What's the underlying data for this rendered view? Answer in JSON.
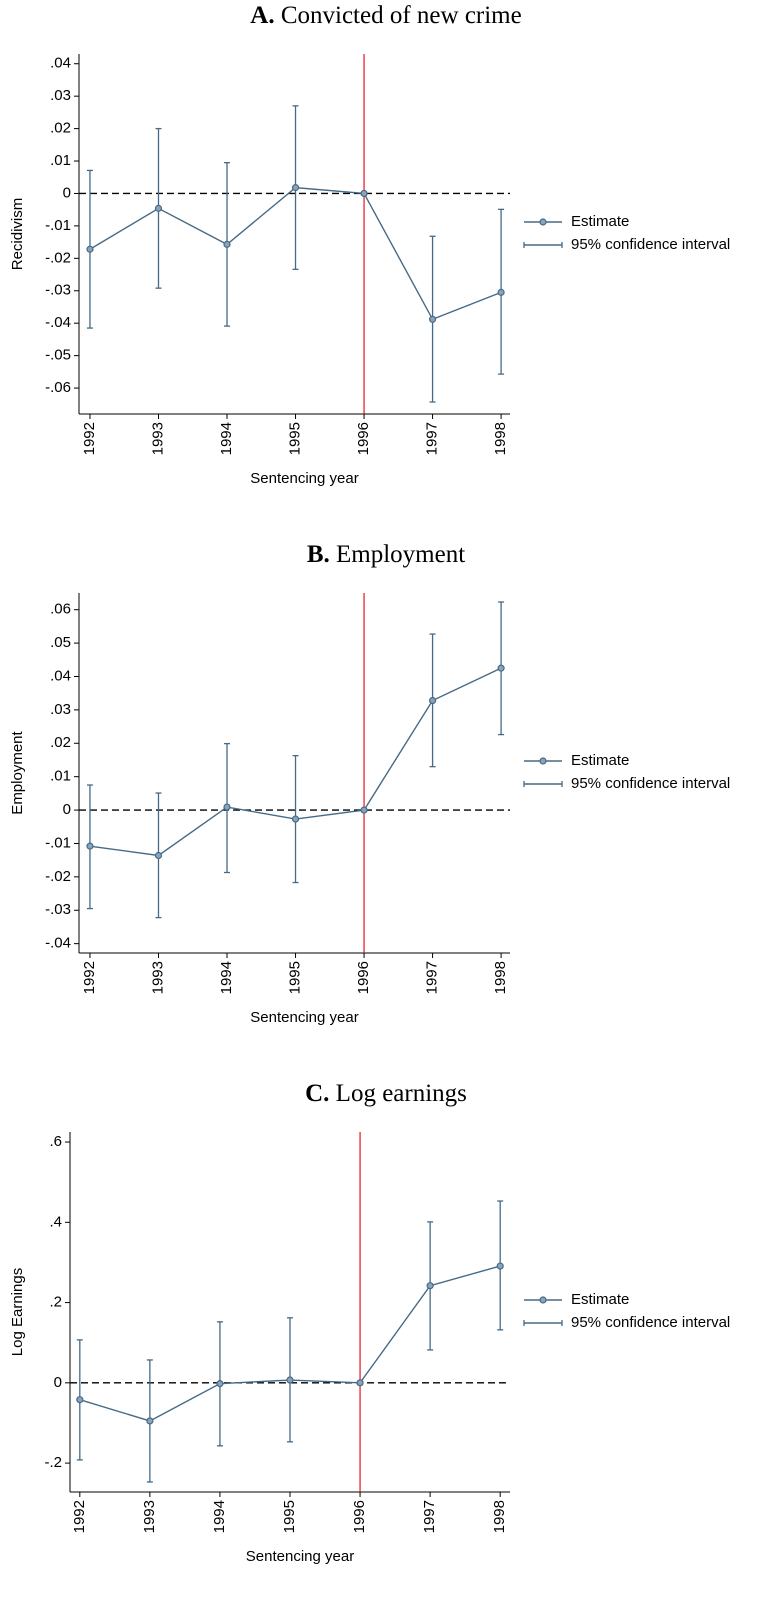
{
  "chart_data": [
    {
      "type": "line",
      "title_label": "A.",
      "title": "Convicted of new crime",
      "xlabel": "Sentencing year",
      "ylabel": "Recidivism",
      "x": [
        1992,
        1993,
        1994,
        1995,
        1996,
        1997,
        1998
      ],
      "xlim": [
        1991.84,
        1998.13
      ],
      "xticks": [
        1992,
        1993,
        1994,
        1995,
        1996,
        1997,
        1998
      ],
      "ylim": [
        -0.068,
        0.043
      ],
      "yticks": [
        {
          "value": 0.04,
          "label": ".04"
        },
        {
          "value": 0.03,
          "label": ".03"
        },
        {
          "value": 0.02,
          "label": ".02"
        },
        {
          "value": 0.01,
          "label": ".01"
        },
        0,
        {
          "value": -0.01,
          "label": "-.01"
        },
        {
          "value": -0.02,
          "label": "-.02"
        },
        {
          "value": -0.03,
          "label": "-.03"
        },
        {
          "value": -0.04,
          "label": "-.04"
        },
        {
          "value": -0.05,
          "label": "-.05"
        },
        {
          "value": -0.06,
          "label": "-.06"
        }
      ],
      "vline": 1996,
      "vline_color": "#e8141c",
      "hline": 0,
      "series": [
        {
          "name": "Estimate",
          "color": "#466a86",
          "values": [
            -0.0172,
            -0.0046,
            -0.0157,
            0.0018,
            0,
            -0.0388,
            -0.0305
          ]
        },
        {
          "name": "95% confidence interval",
          "color": "#466a86",
          "lower": [
            -0.0415,
            -0.0292,
            -0.0409,
            -0.0234,
            null,
            -0.0643,
            -0.0557
          ],
          "upper": [
            0.0071,
            0.02,
            0.0095,
            0.027,
            null,
            -0.0132,
            -0.0049
          ]
        }
      ]
    },
    {
      "type": "line",
      "title_label": "B.",
      "title": "Employment",
      "xlabel": "Sentencing year",
      "ylabel": "Employment",
      "x": [
        1992,
        1993,
        1994,
        1995,
        1996,
        1997,
        1998
      ],
      "xlim": [
        1991.84,
        1998.13
      ],
      "xticks": [
        1992,
        1993,
        1994,
        1995,
        1996,
        1997,
        1998
      ],
      "ylim": [
        -0.0428,
        0.065
      ],
      "yticks": [
        {
          "value": 0.06,
          "label": ".06"
        },
        {
          "value": 0.05,
          "label": ".05"
        },
        {
          "value": 0.04,
          "label": ".04"
        },
        {
          "value": 0.03,
          "label": ".03"
        },
        {
          "value": 0.02,
          "label": ".02"
        },
        {
          "value": 0.01,
          "label": ".01"
        },
        0,
        {
          "value": -0.01,
          "label": "-.01"
        },
        {
          "value": -0.02,
          "label": "-.02"
        },
        {
          "value": -0.03,
          "label": "-.03"
        },
        {
          "value": -0.04,
          "label": "-.04"
        }
      ],
      "vline": 1996,
      "vline_color": "#e8141c",
      "hline": 0,
      "series": [
        {
          "name": "Estimate",
          "color": "#466a86",
          "values": [
            -0.0108,
            -0.0136,
            0.0009,
            -0.0027,
            0,
            0.0328,
            0.0425
          ]
        },
        {
          "name": "95% confidence interval",
          "color": "#466a86",
          "lower": [
            -0.0295,
            -0.0322,
            -0.0187,
            -0.0217,
            null,
            0.013,
            0.0226
          ],
          "upper": [
            0.0075,
            0.0051,
            0.0199,
            0.0163,
            null,
            0.0527,
            0.0623
          ]
        }
      ]
    },
    {
      "type": "line",
      "title_label": "C.",
      "title": "Log earnings",
      "xlabel": "Sentencing year",
      "ylabel": "Log Earnings",
      "x": [
        1992,
        1993,
        1994,
        1995,
        1996,
        1997,
        1998
      ],
      "xlim": [
        1991.86,
        1998.14
      ],
      "xticks": [
        1992,
        1993,
        1994,
        1995,
        1996,
        1997,
        1998
      ],
      "ylim": [
        -0.272,
        0.625
      ],
      "yticks": [
        {
          "value": 0.6,
          "label": ".6"
        },
        {
          "value": 0.4,
          "label": ".4"
        },
        {
          "value": 0.2,
          "label": ".2"
        },
        0,
        {
          "value": -0.2,
          "label": "-.2"
        }
      ],
      "vline": 1996,
      "vline_color": "#e8141c",
      "hline": 0,
      "series": [
        {
          "name": "Estimate",
          "color": "#466a86",
          "values": [
            -0.042,
            -0.095,
            -0.002,
            0.007,
            0,
            0.242,
            0.291
          ]
        },
        {
          "name": "95% confidence interval",
          "color": "#466a86",
          "lower": [
            -0.192,
            -0.247,
            -0.157,
            -0.147,
            null,
            0.082,
            0.132
          ],
          "upper": [
            0.107,
            0.057,
            0.152,
            0.162,
            null,
            0.401,
            0.453
          ]
        }
      ]
    }
  ]
}
